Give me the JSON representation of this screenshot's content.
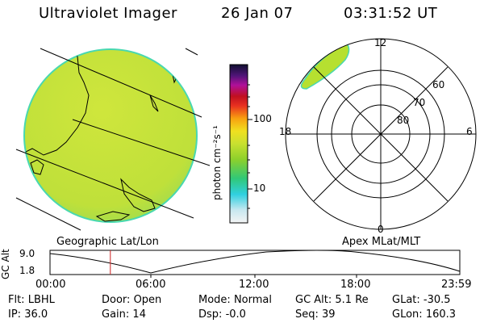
{
  "header": {
    "title": "Ultraviolet Imager",
    "date": "26 Jan 07",
    "time": "03:31:52 UT"
  },
  "colorbar": {
    "unit_label": "photon cm⁻²s⁻¹",
    "ticks": [
      {
        "label": "100",
        "value": 100
      },
      {
        "label": "10",
        "value": 10
      }
    ]
  },
  "polar_plot": {
    "mlt_labels": [
      "12",
      "18",
      "6",
      "0"
    ],
    "mlat_labels": [
      "60",
      "70",
      "80"
    ]
  },
  "panel_labels": {
    "left": "Geographic Lat/Lon",
    "right": "Apex MLat/MLT"
  },
  "altitude_plot": {
    "ylabel": "GC Alt",
    "y_ticks": [
      "9.0",
      "1.8"
    ],
    "x_ticks": [
      "00:00",
      "06:00",
      "12:00",
      "18:00",
      "23:59"
    ],
    "current_time_hours": 3.53
  },
  "info": {
    "row1": [
      {
        "label": "Flt:",
        "value": "LBHL"
      },
      {
        "label": "Door:",
        "value": "Open"
      },
      {
        "label": "Mode:",
        "value": "Normal"
      },
      {
        "label": "GC Alt:",
        "value": "5.1 Re"
      },
      {
        "label": "GLat:",
        "value": "-30.5"
      }
    ],
    "row2": [
      {
        "label": "IP:",
        "value": "36.0"
      },
      {
        "label": "Gain:",
        "value": "14"
      },
      {
        "label": "Dsp:",
        "value": "-0.0"
      },
      {
        "label": "Seq:",
        "value": "39"
      },
      {
        "label": "GLon:",
        "value": "160.3"
      }
    ]
  },
  "colors": {
    "earth_fill": "#c4e23a",
    "earth_edge": "#48d8b0",
    "aurora_fill": "#b6e030",
    "marker": "#cc2222"
  }
}
